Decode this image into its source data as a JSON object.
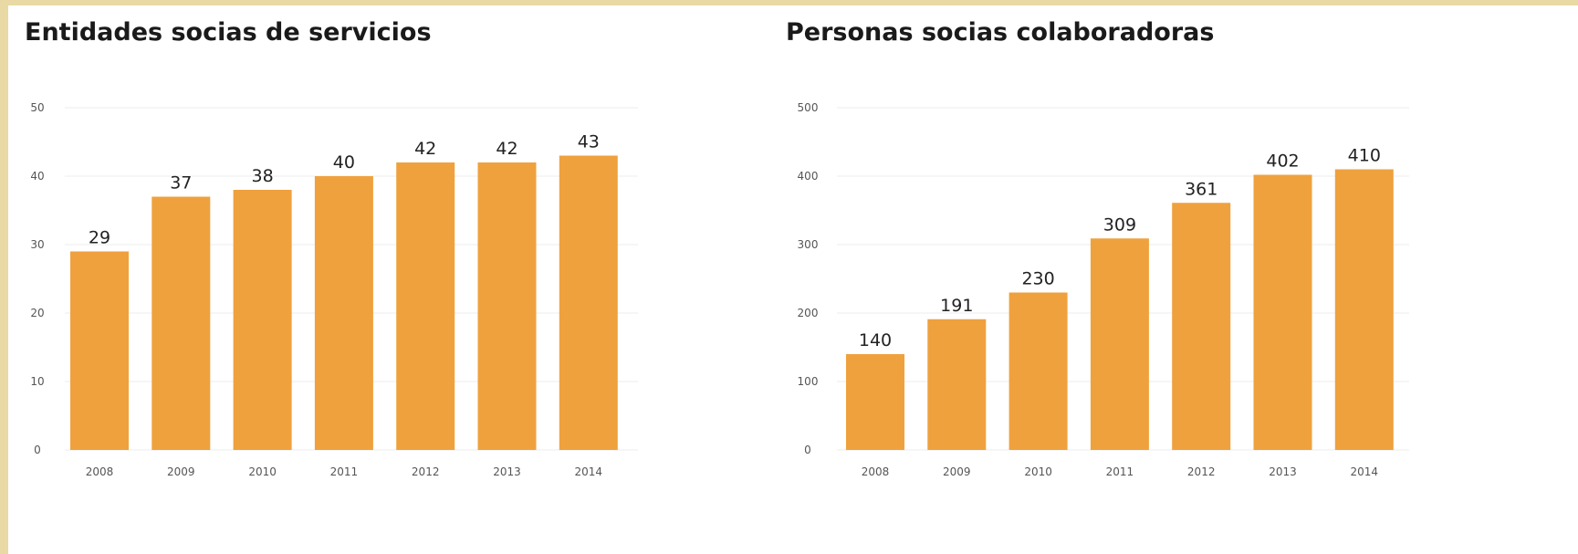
{
  "chart_data": [
    {
      "type": "bar",
      "title": "Entidades socias de servicios",
      "categories": [
        "2008",
        "2009",
        "2010",
        "2011",
        "2012",
        "2013",
        "2014"
      ],
      "values": [
        29,
        37,
        38,
        40,
        42,
        42,
        43
      ],
      "yticks": [
        "0",
        "10",
        "20",
        "30",
        "40",
        "50"
      ],
      "ylim": [
        0,
        50
      ],
      "grid": true,
      "bar_color": "#efa13e"
    },
    {
      "type": "bar",
      "title": "Personas socias colaboradoras",
      "categories": [
        "2008",
        "2009",
        "2010",
        "2011",
        "2012",
        "2013",
        "2014"
      ],
      "values": [
        140,
        191,
        230,
        309,
        361,
        402,
        410
      ],
      "yticks": [
        "0",
        "100",
        "200",
        "300",
        "400",
        "500"
      ],
      "ylim": [
        0,
        500
      ],
      "grid": true,
      "bar_color": "#efa13e"
    }
  ]
}
